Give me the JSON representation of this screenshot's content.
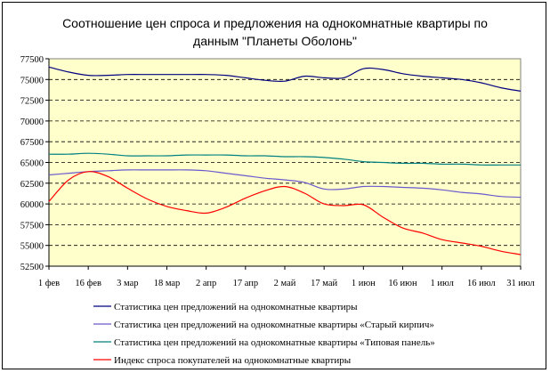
{
  "chart_data": {
    "type": "line",
    "title_line1": "Соотношение цен спроса и предложения на однокомнатные квартиры по",
    "title_line2": "данным \"Планеты Оболонь\"",
    "xlabel": "",
    "ylabel": "",
    "ylim": [
      52500,
      77500
    ],
    "yticks": [
      52500,
      55000,
      57500,
      60000,
      62500,
      65000,
      67500,
      70000,
      72500,
      75000,
      77500
    ],
    "x_categories": [
      "1 фев",
      "16 фев",
      "3 мар",
      "18 мар",
      "2 апр",
      "17 апр",
      "2 май",
      "17 май",
      "1 июн",
      "16 июн",
      "1 июл",
      "16 июл",
      "31 июл"
    ],
    "grid": "horizontal dashed",
    "background_color": "#ffffcc",
    "legend_position": "bottom",
    "series": [
      {
        "name": "Статистика цен предложений на однокомнатные квартиры",
        "color": "#000080",
        "x": [
          0,
          0.5,
          1,
          1.5,
          2,
          2.5,
          3,
          3.5,
          4,
          4.5,
          5,
          5.5,
          6,
          6.5,
          7,
          7.5,
          8,
          8.5,
          9,
          9.5,
          10,
          10.5,
          11,
          11.5,
          12
        ],
        "values": [
          76500,
          75900,
          75500,
          75500,
          75600,
          75600,
          75600,
          75600,
          75600,
          75500,
          75200,
          74900,
          74800,
          75400,
          75200,
          75200,
          76300,
          76200,
          75700,
          75400,
          75200,
          75000,
          74600,
          74000,
          73600
        ]
      },
      {
        "name": "Статистика цен предложений на однокомнатные квартиры «Старый кирпич»",
        "color": "#6a5acd",
        "x": [
          0,
          0.5,
          1,
          1.5,
          2,
          2.5,
          3,
          3.5,
          4,
          4.5,
          5,
          5.5,
          6,
          6.5,
          7,
          7.5,
          8,
          8.5,
          9,
          9.5,
          10,
          10.5,
          11,
          11.5,
          12
        ],
        "values": [
          63500,
          63700,
          63900,
          64000,
          64100,
          64100,
          64100,
          64100,
          64000,
          63700,
          63400,
          63100,
          62900,
          62600,
          61800,
          61800,
          62100,
          62100,
          62000,
          61900,
          61700,
          61400,
          61200,
          60900,
          60800
        ]
      },
      {
        "name": "Статистика цен предложений на однокомнатные квартиры «Типовая панель»",
        "color": "#008080",
        "x": [
          0,
          0.5,
          1,
          1.5,
          2,
          2.5,
          3,
          3.5,
          4,
          4.5,
          5,
          5.5,
          6,
          6.5,
          7,
          7.5,
          8,
          8.5,
          9,
          9.5,
          10,
          10.5,
          11,
          11.5,
          12
        ],
        "values": [
          66000,
          66000,
          66100,
          66000,
          65800,
          65800,
          65800,
          65900,
          65900,
          65900,
          65800,
          65800,
          65700,
          65700,
          65600,
          65400,
          65100,
          65000,
          64900,
          64900,
          64800,
          64800,
          64700,
          64700,
          64700
        ]
      },
      {
        "name": "Индекс спроса покупателей на однокомнатные квартиры",
        "color": "#ff0000",
        "x": [
          0,
          0.5,
          1,
          1.5,
          2,
          2.5,
          3,
          3.5,
          4,
          4.5,
          5,
          5.5,
          6,
          6.5,
          7,
          7.5,
          8,
          8.5,
          9,
          9.5,
          10,
          10.5,
          11,
          11.5,
          12
        ],
        "values": [
          60300,
          62900,
          63900,
          63300,
          61900,
          60600,
          59700,
          59200,
          58900,
          59600,
          60700,
          61600,
          62100,
          61300,
          60000,
          59800,
          59900,
          58400,
          57100,
          56500,
          55700,
          55300,
          54900,
          54300,
          53900
        ]
      }
    ]
  }
}
